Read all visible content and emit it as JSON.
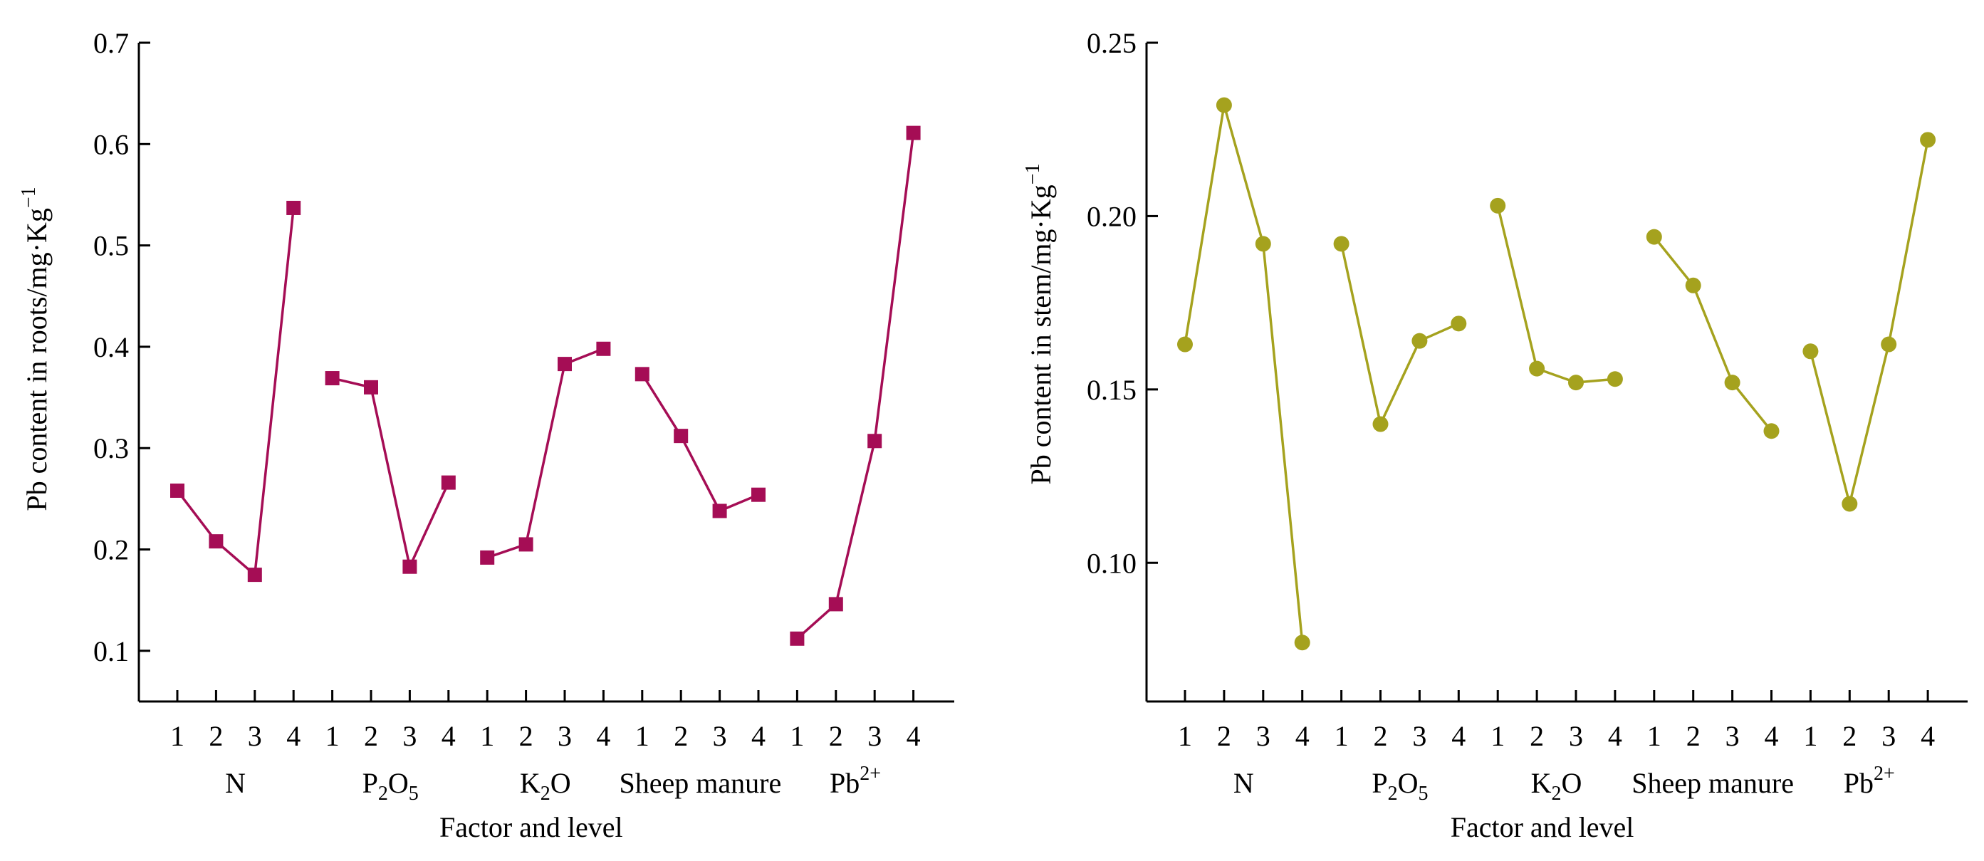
{
  "chart_data": [
    {
      "type": "line",
      "marker": "square",
      "color": "#a50d55",
      "ylabel": "Pb content in roots/mg·Kg",
      "ylabel_sup": "−1",
      "xlabel": "Factor and level",
      "ylim": [
        0.05,
        0.7
      ],
      "yticks": [
        {
          "value": 0.1,
          "label": "0.1"
        },
        {
          "value": 0.2,
          "label": "0.2"
        },
        {
          "value": 0.3,
          "label": "0.3"
        },
        {
          "value": 0.4,
          "label": "0.4"
        },
        {
          "value": 0.5,
          "label": "0.5"
        },
        {
          "value": 0.6,
          "label": "0.6"
        },
        {
          "value": 0.7,
          "label": "0.7"
        }
      ],
      "levels": [
        "1",
        "2",
        "3",
        "4"
      ],
      "groups": [
        {
          "base": "N",
          "sub": "",
          "base2": "",
          "sup": "",
          "values": [
            0.258,
            0.208,
            0.175,
            0.537
          ]
        },
        {
          "base": "P",
          "sub": "2",
          "base2": "O",
          "sub2": "5",
          "sup": "",
          "values": [
            0.369,
            0.36,
            0.183,
            0.266
          ]
        },
        {
          "base": "K",
          "sub": "2",
          "base2": "O",
          "sub2": "",
          "sup": "",
          "values": [
            0.192,
            0.205,
            0.383,
            0.398
          ]
        },
        {
          "base": "Sheep manure",
          "sub": "",
          "base2": "",
          "sup": "",
          "values": [
            0.373,
            0.312,
            0.238,
            0.254
          ]
        },
        {
          "base": "Pb",
          "sub": "",
          "base2": "",
          "sup": "2+",
          "values": [
            0.112,
            0.146,
            0.307,
            0.611
          ]
        }
      ]
    },
    {
      "type": "line",
      "marker": "circle",
      "color": "#a5a21e",
      "ylabel": "Pb content in stem/mg·Kg",
      "ylabel_sup": "−1",
      "xlabel": "Factor and level",
      "ylim": [
        0.06,
        0.25
      ],
      "yticks": [
        {
          "value": 0.1,
          "label": "0.10"
        },
        {
          "value": 0.15,
          "label": "0.15"
        },
        {
          "value": 0.2,
          "label": "0.20"
        },
        {
          "value": 0.25,
          "label": "0.25"
        }
      ],
      "levels": [
        "1",
        "2",
        "3",
        "4"
      ],
      "groups": [
        {
          "base": "N",
          "sub": "",
          "base2": "",
          "sup": "",
          "values": [
            0.163,
            0.232,
            0.192,
            0.077
          ]
        },
        {
          "base": "P",
          "sub": "2",
          "base2": "O",
          "sub2": "5",
          "sup": "",
          "values": [
            0.192,
            0.14,
            0.164,
            0.169
          ]
        },
        {
          "base": "K",
          "sub": "2",
          "base2": "O",
          "sub2": "",
          "sup": "",
          "values": [
            0.203,
            0.156,
            0.152,
            0.153
          ]
        },
        {
          "base": "Sheep manure",
          "sub": "",
          "base2": "",
          "sup": "",
          "values": [
            0.194,
            0.18,
            0.152,
            0.138
          ]
        },
        {
          "base": "Pb",
          "sub": "",
          "base2": "",
          "sup": "2+",
          "values": [
            0.161,
            0.117,
            0.163,
            0.222
          ]
        }
      ]
    }
  ]
}
